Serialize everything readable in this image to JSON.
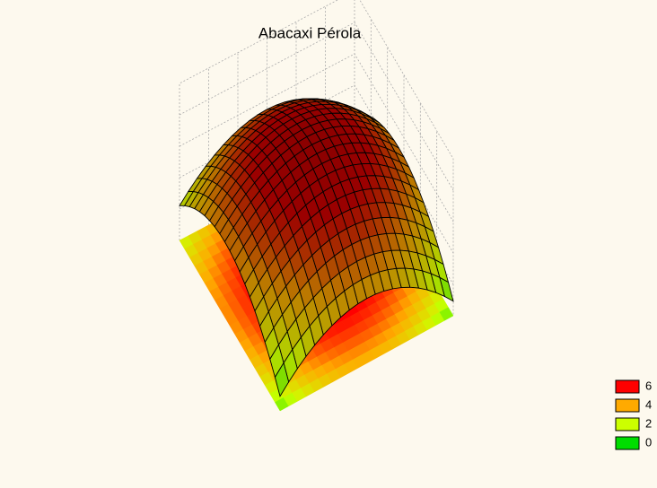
{
  "chart_data": {
    "type": "surface",
    "title": "Abacaxi Pérola",
    "levels": [
      6,
      4,
      2,
      0
    ],
    "colors": [
      "#ff0000",
      "#ffaa00",
      "#ccff00",
      "#00dd00"
    ]
  }
}
